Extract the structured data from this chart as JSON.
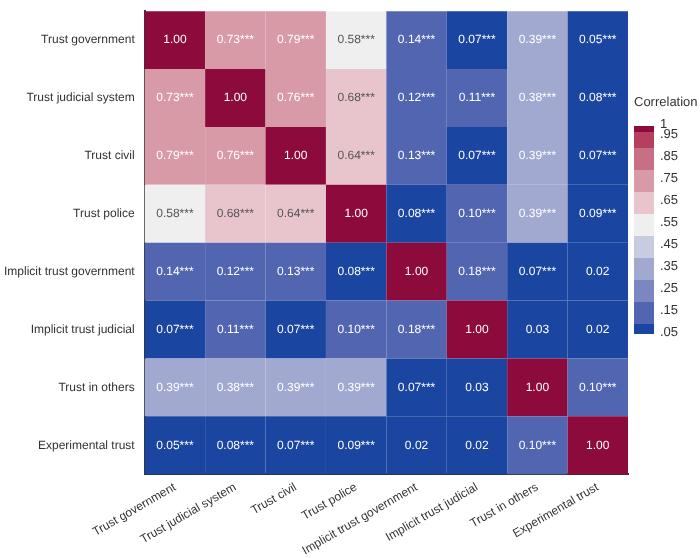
{
  "chart_data": {
    "type": "heatmap",
    "clabel": "Correlation",
    "categories": [
      "Trust government",
      "Trust judicial system",
      "Trust civil",
      "Trust police",
      "Implicit trust government",
      "Implicit trust judicial",
      "Trust in others",
      "Experimental trust"
    ],
    "y_categories": [
      "Trust government",
      "Trust judicial system",
      "Trust civil",
      "Trust police",
      "Implicit trust government",
      "Implicit trust judicial",
      "Trust in others",
      "Experimental trust"
    ],
    "cells": [
      [
        1.0,
        0.73,
        0.79,
        0.58,
        0.14,
        0.07,
        0.39,
        0.05
      ],
      [
        0.73,
        1.0,
        0.76,
        0.68,
        0.12,
        0.11,
        0.38,
        0.08
      ],
      [
        0.79,
        0.76,
        1.0,
        0.64,
        0.13,
        0.07,
        0.39,
        0.07
      ],
      [
        0.58,
        0.68,
        0.64,
        1.0,
        0.08,
        0.1,
        0.39,
        0.09
      ],
      [
        0.14,
        0.12,
        0.13,
        0.08,
        1.0,
        0.18,
        0.07,
        0.02
      ],
      [
        0.07,
        0.11,
        0.07,
        0.1,
        0.18,
        1.0,
        0.03,
        0.02
      ],
      [
        0.39,
        0.38,
        0.39,
        0.39,
        0.07,
        0.03,
        1.0,
        0.1
      ],
      [
        0.05,
        0.08,
        0.07,
        0.09,
        0.02,
        0.02,
        0.1,
        1.0
      ]
    ],
    "cell_labels": [
      [
        "1.00",
        "0.73***",
        "0.79***",
        "0.58***",
        "0.14***",
        "0.07***",
        "0.39***",
        "0.05***"
      ],
      [
        "0.73***",
        "1.00",
        "0.76***",
        "0.68***",
        "0.12***",
        "0.11***",
        "0.38***",
        "0.08***"
      ],
      [
        "0.79***",
        "0.76***",
        "1.00",
        "0.64***",
        "0.13***",
        "0.07***",
        "0.39***",
        "0.07***"
      ],
      [
        "0.58***",
        "0.68***",
        "0.64***",
        "1.00",
        "0.08***",
        "0.10***",
        "0.39***",
        "0.09***"
      ],
      [
        "0.14***",
        "0.12***",
        "0.13***",
        "0.08***",
        "1.00",
        "0.18***",
        "0.07***",
        "0.02"
      ],
      [
        "0.07***",
        "0.11***",
        "0.07***",
        "0.10***",
        "0.18***",
        "1.00",
        "0.03",
        "0.02"
      ],
      [
        "0.39***",
        "0.38***",
        "0.39***",
        "0.39***",
        "0.07***",
        "0.03",
        "1.00",
        "0.10***"
      ],
      [
        "0.05***",
        "0.08***",
        "0.07***",
        "0.09***",
        "0.02",
        "0.02",
        "0.10***",
        "1.00"
      ]
    ],
    "clim": [
      0.05,
      1
    ],
    "cticks": [
      1,
      {
        "value": 0.95,
        "label": ".95"
      },
      {
        "value": 0.85,
        "label": ".85"
      },
      {
        "value": 0.75,
        "label": ".75"
      },
      {
        "value": 0.65,
        "label": ".65"
      },
      {
        "value": 0.55,
        "label": ".55"
      },
      {
        "value": 0.45,
        "label": ".45"
      },
      {
        "value": 0.35,
        "label": ".35"
      },
      {
        "value": 0.25,
        "label": ".25"
      },
      {
        "value": 0.15,
        "label": ".15"
      },
      {
        "value": 0.05,
        "label": ".05"
      }
    ]
  }
}
